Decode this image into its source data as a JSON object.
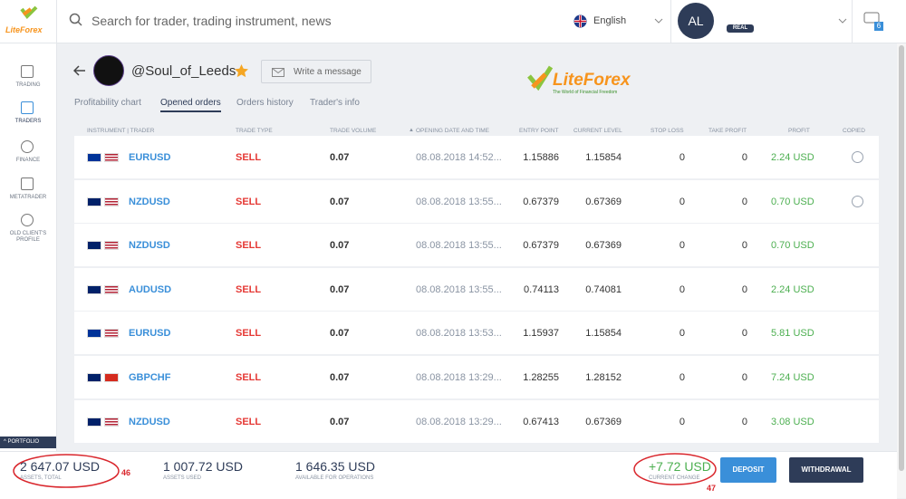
{
  "logo": {
    "name": "LiteForex"
  },
  "header": {
    "search_placeholder": "Search for trader, trading instrument, news",
    "language": "English",
    "avatar": "AL",
    "account_type": "REAL",
    "notifications": "6"
  },
  "sidebar": [
    {
      "label": "TRADING"
    },
    {
      "label": "TRADERS"
    },
    {
      "label": "FINANCE"
    },
    {
      "label": "METATRADER"
    },
    {
      "label": "OLD CLIENT'S PROFILE"
    }
  ],
  "portfolio_label": "PORTFOLIO",
  "trader": {
    "name": "@Soul_of_Leeds",
    "message_button": "Write a message"
  },
  "brand": {
    "name": "LiteForex",
    "tagline": "The World of Financial Freedom"
  },
  "tabs": [
    "Profitability chart",
    "Opened orders",
    "Orders history",
    "Trader's info"
  ],
  "table": {
    "columns": [
      "INSTRUMENT | TRADER",
      "TRADE TYPE",
      "TRADE VOLUME",
      "OPENING DATE AND TIME",
      "ENTRY POINT",
      "CURRENT LEVEL",
      "STOP LOSS",
      "TAKE PROFIT",
      "PROFIT",
      "COPIED"
    ],
    "rows": [
      [
        "EURUSD",
        "SELL",
        "0.07",
        "08.08.2018 14:52...",
        "1.15886",
        "1.15854",
        "0",
        "0",
        "2.24 USD"
      ],
      [
        "NZDUSD",
        "SELL",
        "0.07",
        "08.08.2018 13:55...",
        "0.67379",
        "0.67369",
        "0",
        "0",
        "0.70 USD"
      ],
      [
        "NZDUSD",
        "SELL",
        "0.07",
        "08.08.2018 13:55...",
        "0.67379",
        "0.67369",
        "0",
        "0",
        "0.70 USD"
      ],
      [
        "AUDUSD",
        "SELL",
        "0.07",
        "08.08.2018 13:55...",
        "0.74113",
        "0.74081",
        "0",
        "0",
        "2.24 USD"
      ],
      [
        "EURUSD",
        "SELL",
        "0.07",
        "08.08.2018 13:53...",
        "1.15937",
        "1.15854",
        "0",
        "0",
        "5.81 USD"
      ],
      [
        "GBPCHF",
        "SELL",
        "0.07",
        "08.08.2018 13:29...",
        "1.28255",
        "1.28152",
        "0",
        "0",
        "7.24 USD"
      ],
      [
        "NZDUSD",
        "SELL",
        "0.07",
        "08.08.2018 13:29...",
        "0.67413",
        "0.67369",
        "0",
        "0",
        "3.08 USD"
      ]
    ]
  },
  "footer": {
    "assets_total": {
      "value": "2 647.07 USD",
      "label": "ASSETS, TOTAL"
    },
    "assets_used": {
      "value": "1 007.72 USD",
      "label": "ASSETS USED"
    },
    "available": {
      "value": "1 646.35 USD",
      "label": "AVAILABLE FOR OPERATIONS"
    },
    "current_change": {
      "value": "+7.72 USD",
      "label": "CURRENT CHANGE"
    },
    "deposit_button": "DEPOSIT",
    "withdrawal_button": "WITHDRAWAL"
  },
  "annotations": [
    "46",
    "47"
  ]
}
